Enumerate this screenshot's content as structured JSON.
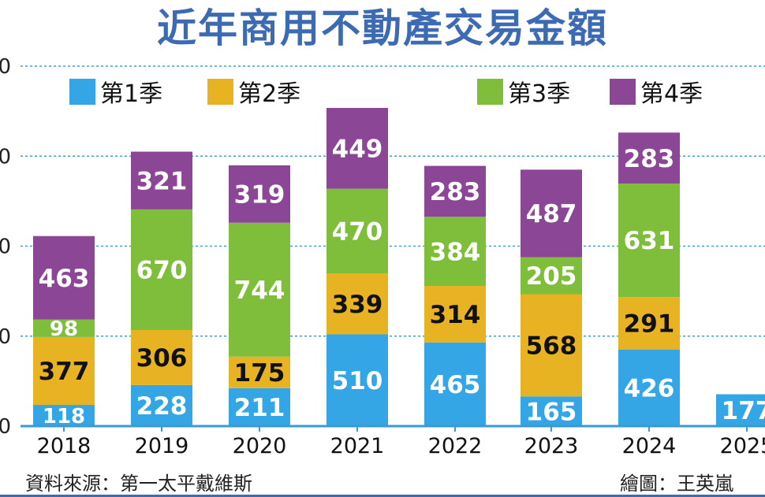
{
  "chart_data": {
    "type": "bar",
    "stacked": true,
    "title": "近年商用不動產交易金額",
    "xlabel": "",
    "ylabel": "",
    "categories": [
      "2018",
      "2019",
      "2020",
      "2021",
      "2022",
      "2023",
      "2024",
      "2025"
    ],
    "series": [
      {
        "name": "第1季",
        "color": "#35a6e5",
        "label_color": "#ffffff",
        "values": [
          118,
          228,
          211,
          510,
          465,
          165,
          426,
          177
        ]
      },
      {
        "name": "第2季",
        "color": "#e8b322",
        "label_color": "#111111",
        "values": [
          377,
          306,
          175,
          339,
          314,
          568,
          291,
          null
        ]
      },
      {
        "name": "第3季",
        "color": "#7fbe3b",
        "label_color": "#ffffff",
        "values": [
          98,
          670,
          744,
          470,
          384,
          205,
          631,
          null
        ]
      },
      {
        "name": "第4季",
        "color": "#8b4796",
        "label_color": "#ffffff",
        "values": [
          463,
          321,
          319,
          449,
          283,
          487,
          283,
          null
        ]
      }
    ],
    "ylim": [
      0,
      2000
    ],
    "yticks": [
      0,
      500,
      1000,
      1500,
      2000
    ],
    "ytick_labels_visible": [
      "0",
      "0",
      "0",
      "0",
      "0"
    ],
    "grid": true,
    "legend_position": "top"
  },
  "footer": {
    "source": "資料來源：第一太平戴維斯",
    "credit": "繪圖：王英嵐"
  }
}
